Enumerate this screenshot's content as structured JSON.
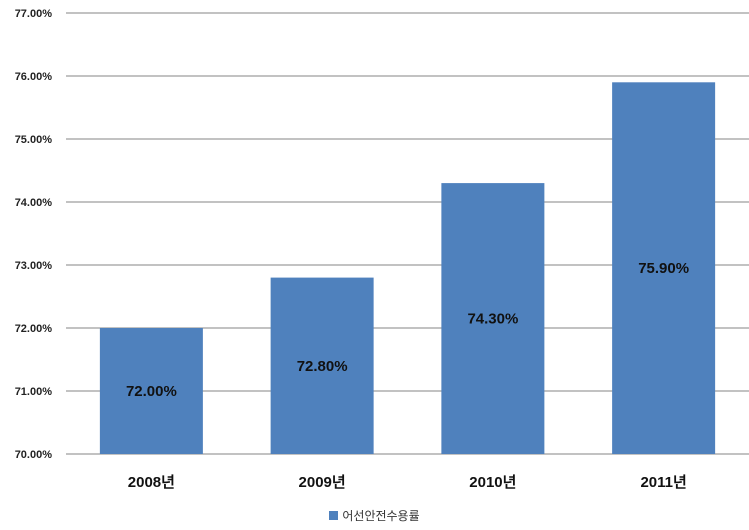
{
  "chart_data": {
    "type": "bar",
    "categories": [
      "2008년",
      "2009년",
      "2010년",
      "2011년"
    ],
    "series": [
      {
        "name": "어선안전수용률",
        "values": [
          72.0,
          72.8,
          74.3,
          75.9
        ]
      }
    ],
    "data_labels": [
      "72.00%",
      "72.80%",
      "74.30%",
      "75.90%"
    ],
    "y_ticks": [
      "70.00%",
      "71.00%",
      "72.00%",
      "73.00%",
      "74.00%",
      "75.00%",
      "76.00%",
      "77.00%"
    ],
    "ylim": [
      70,
      77
    ],
    "grid": true,
    "legend_position": "bottom",
    "bar_color": "#4f81bd"
  }
}
